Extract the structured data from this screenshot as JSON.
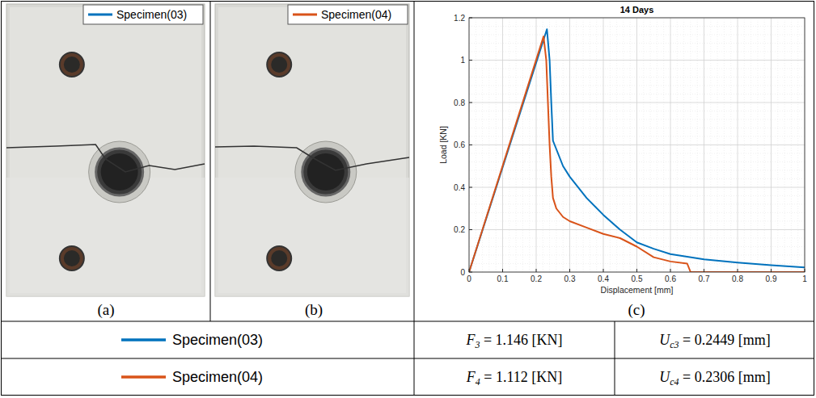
{
  "chart_data": {
    "type": "line",
    "title": "14 Days",
    "x_label": "Displacement [mm]",
    "y_label": "Load [KN]",
    "xlim": [
      0,
      1
    ],
    "ylim": [
      0,
      1.2
    ],
    "xticks": [
      0,
      0.1,
      0.2,
      0.3,
      0.4,
      0.5,
      0.6,
      0.7,
      0.8,
      0.9,
      1
    ],
    "yticks": [
      0,
      0.2,
      0.4,
      0.6,
      0.8,
      1,
      1.2
    ],
    "grid": true,
    "series": [
      {
        "name": "Specimen(03)",
        "color": "#0072BD",
        "x": [
          0,
          0.232,
          0.24,
          0.245,
          0.25,
          0.26,
          0.28,
          0.3,
          0.35,
          0.4,
          0.45,
          0.5,
          0.55,
          0.6,
          0.7,
          0.8,
          0.9,
          1.0
        ],
        "values": [
          0,
          1.146,
          1.0,
          0.8,
          0.62,
          0.58,
          0.5,
          0.45,
          0.35,
          0.27,
          0.2,
          0.14,
          0.11,
          0.085,
          0.06,
          0.045,
          0.032,
          0.022
        ]
      },
      {
        "name": "Specimen(04)",
        "color": "#D95319",
        "x": [
          0,
          0.222,
          0.23,
          0.235,
          0.24,
          0.245,
          0.25,
          0.26,
          0.28,
          0.3,
          0.35,
          0.4,
          0.45,
          0.5,
          0.55,
          0.6,
          0.65,
          0.66,
          1.0
        ],
        "values": [
          0,
          1.112,
          1.0,
          0.8,
          0.6,
          0.45,
          0.35,
          0.3,
          0.26,
          0.24,
          0.21,
          0.18,
          0.16,
          0.12,
          0.07,
          0.05,
          0.04,
          0.0,
          0.0
        ]
      }
    ]
  },
  "panels": [
    "(a)",
    "(b)",
    "(c)"
  ],
  "table": {
    "rows": [
      {
        "force": {
          "symbol": "F",
          "subscript": "3",
          "relation": "=",
          "value": 1.146,
          "unit": "[KN]"
        },
        "displacement": {
          "symbol": "U",
          "subscript": "c3",
          "relation": "=",
          "value": 0.2449,
          "unit": "[mm]"
        }
      },
      {
        "force": {
          "symbol": "F",
          "subscript": "4",
          "relation": "=",
          "value": 1.112,
          "unit": "[KN]"
        },
        "displacement": {
          "symbol": "U",
          "subscript": "c4",
          "relation": "=",
          "value": 0.2306,
          "unit": "[mm]"
        }
      }
    ]
  }
}
